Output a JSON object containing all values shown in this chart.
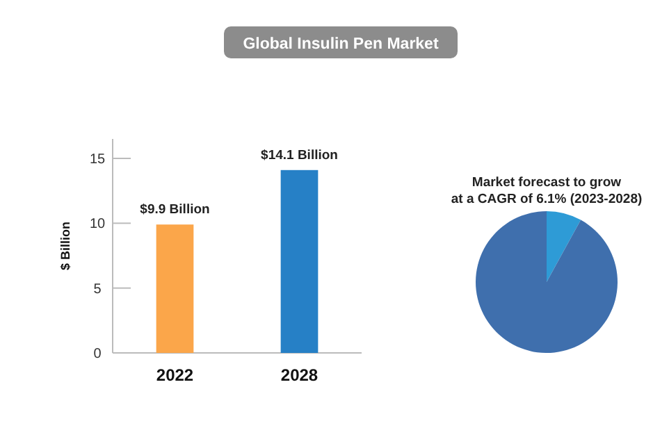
{
  "chart_data": [
    {
      "type": "bar",
      "title": "Global Insulin Pen Market",
      "ylabel": "$ Billion",
      "categories": [
        "2022",
        "2028"
      ],
      "values": [
        9.9,
        14.1
      ],
      "colors": [
        "#fba64a",
        "#2680c6"
      ],
      "value_labels": [
        "$9.9 Billion",
        "$14.1 Billion"
      ],
      "ylim": [
        0,
        16.5
      ],
      "yticks": [
        0,
        5,
        10,
        15
      ],
      "grid": false
    },
    {
      "type": "pie",
      "title": "Market forecast to grow at a CAGR of 6.1% (2023-2028)",
      "categories": [
        null,
        null
      ],
      "values": [
        8,
        92
      ],
      "colors": [
        "#2e9bd6",
        "#3f6fad"
      ]
    }
  ]
}
